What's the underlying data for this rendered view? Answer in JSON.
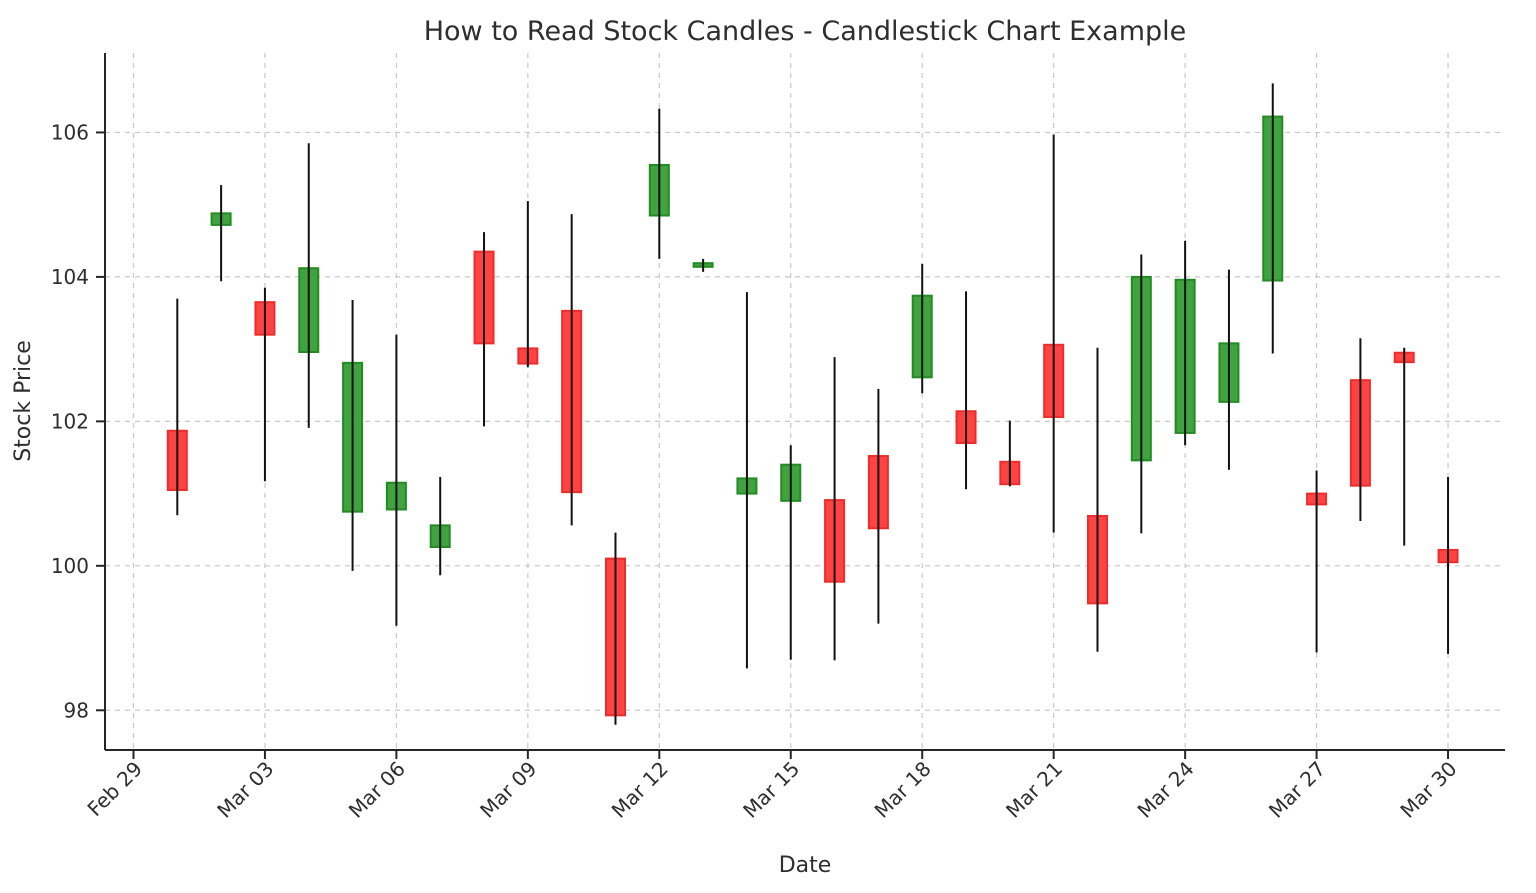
{
  "chart_data": {
    "type": "candlestick",
    "title": "How to Read Stock Candles - Candlestick Chart Example",
    "xlabel": "Date",
    "ylabel": "Stock Price",
    "grid": true,
    "legend": "none",
    "x_tick_labels": [
      "Feb 29",
      "Mar 03",
      "Mar 06",
      "Mar 09",
      "Mar 12",
      "Mar 15",
      "Mar 18",
      "Mar 21",
      "Mar 24",
      "Mar 27",
      "Mar 30"
    ],
    "x_tick_days": [
      0,
      3,
      6,
      9,
      12,
      15,
      18,
      21,
      24,
      27,
      30
    ],
    "y_ticks": [
      98,
      100,
      102,
      104,
      106
    ],
    "y_tick_labels": [
      "98",
      "100",
      "102",
      "104",
      "106"
    ],
    "xlim_days": [
      -0.65,
      31.3
    ],
    "ylim": [
      97.45,
      107.1
    ],
    "colors": {
      "up_fill": "#40a340",
      "up_edge": "#228B22",
      "down_fill": "#ff4343",
      "down_edge": "#ee2c2c",
      "wick": "#111111",
      "gridline": "#c9c9c9",
      "spine": "#262626",
      "text": "#2e2e2e"
    },
    "candles": [
      {
        "date": "Mar 01",
        "day": 1,
        "open": 101.87,
        "high": 103.7,
        "low": 100.7,
        "close": 101.05
      },
      {
        "date": "Mar 02",
        "day": 2,
        "open": 104.72,
        "high": 105.27,
        "low": 103.94,
        "close": 104.88
      },
      {
        "date": "Mar 03",
        "day": 3,
        "open": 103.65,
        "high": 103.85,
        "low": 101.17,
        "close": 103.2
      },
      {
        "date": "Mar 04",
        "day": 4,
        "open": 102.96,
        "high": 105.85,
        "low": 101.91,
        "close": 104.12
      },
      {
        "date": "Mar 05",
        "day": 5,
        "open": 100.75,
        "high": 103.68,
        "low": 99.93,
        "close": 102.81
      },
      {
        "date": "Mar 06",
        "day": 6,
        "open": 100.78,
        "high": 103.2,
        "low": 99.17,
        "close": 101.15
      },
      {
        "date": "Mar 07",
        "day": 7,
        "open": 100.26,
        "high": 101.23,
        "low": 99.87,
        "close": 100.56
      },
      {
        "date": "Mar 08",
        "day": 8,
        "open": 104.35,
        "high": 104.62,
        "low": 101.93,
        "close": 103.08
      },
      {
        "date": "Mar 09",
        "day": 9,
        "open": 103.01,
        "high": 105.05,
        "low": 102.75,
        "close": 102.8
      },
      {
        "date": "Mar 10",
        "day": 10,
        "open": 103.53,
        "high": 104.87,
        "low": 100.56,
        "close": 101.02
      },
      {
        "date": "Mar 11",
        "day": 11,
        "open": 100.1,
        "high": 100.46,
        "low": 97.8,
        "close": 97.93
      },
      {
        "date": "Mar 12",
        "day": 12,
        "open": 104.85,
        "high": 106.33,
        "low": 104.25,
        "close": 105.55
      },
      {
        "date": "Mar 13",
        "day": 13,
        "open": 104.14,
        "high": 104.25,
        "low": 104.07,
        "close": 104.19
      },
      {
        "date": "Mar 14",
        "day": 14,
        "open": 101.0,
        "high": 103.79,
        "low": 98.58,
        "close": 101.21
      },
      {
        "date": "Mar 15",
        "day": 15,
        "open": 100.9,
        "high": 101.67,
        "low": 98.7,
        "close": 101.4
      },
      {
        "date": "Mar 16",
        "day": 16,
        "open": 100.91,
        "high": 102.89,
        "low": 98.69,
        "close": 99.78
      },
      {
        "date": "Mar 17",
        "day": 17,
        "open": 101.52,
        "high": 102.45,
        "low": 99.2,
        "close": 100.52
      },
      {
        "date": "Mar 18",
        "day": 18,
        "open": 102.61,
        "high": 104.18,
        "low": 102.39,
        "close": 103.74
      },
      {
        "date": "Mar 19",
        "day": 19,
        "open": 102.14,
        "high": 103.8,
        "low": 101.06,
        "close": 101.7
      },
      {
        "date": "Mar 20",
        "day": 20,
        "open": 101.44,
        "high": 102.01,
        "low": 101.1,
        "close": 101.13
      },
      {
        "date": "Mar 21",
        "day": 21,
        "open": 103.06,
        "high": 105.97,
        "low": 100.46,
        "close": 102.06
      },
      {
        "date": "Mar 22",
        "day": 22,
        "open": 100.69,
        "high": 103.02,
        "low": 98.81,
        "close": 99.48
      },
      {
        "date": "Mar 23",
        "day": 23,
        "open": 101.46,
        "high": 104.31,
        "low": 100.45,
        "close": 104.0
      },
      {
        "date": "Mar 24",
        "day": 24,
        "open": 101.84,
        "high": 104.5,
        "low": 101.67,
        "close": 103.96
      },
      {
        "date": "Mar 25",
        "day": 25,
        "open": 102.27,
        "high": 104.1,
        "low": 101.33,
        "close": 103.08
      },
      {
        "date": "Mar 26",
        "day": 26,
        "open": 103.95,
        "high": 106.68,
        "low": 102.94,
        "close": 106.22
      },
      {
        "date": "Mar 27",
        "day": 27,
        "open": 101.0,
        "high": 101.32,
        "low": 98.8,
        "close": 100.85
      },
      {
        "date": "Mar 28",
        "day": 28,
        "open": 102.57,
        "high": 103.15,
        "low": 100.62,
        "close": 101.11
      },
      {
        "date": "Mar 29",
        "day": 29,
        "open": 102.95,
        "high": 103.02,
        "low": 100.28,
        "close": 102.82
      },
      {
        "date": "Mar 30",
        "day": 30,
        "open": 100.22,
        "high": 101.23,
        "low": 98.78,
        "close": 100.05
      }
    ]
  }
}
